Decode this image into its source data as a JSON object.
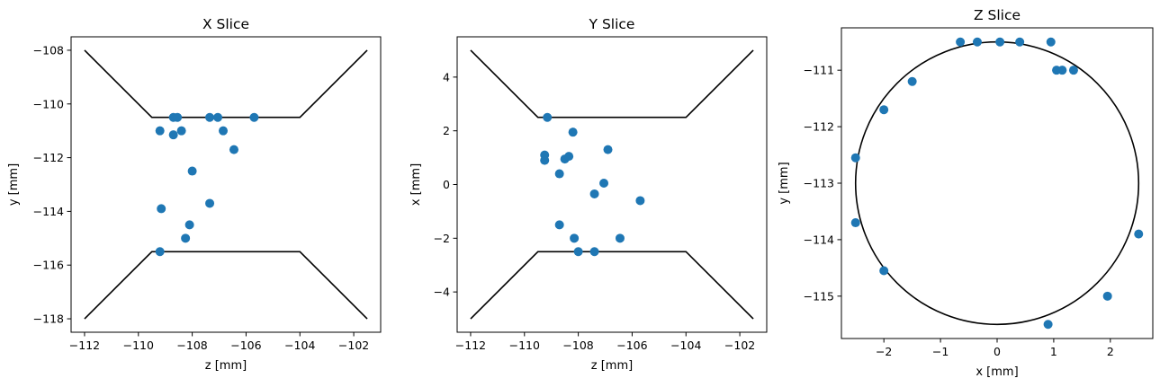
{
  "figure": {
    "marker_color": "#1f77b4",
    "line_color": "#000000"
  },
  "chart_data": [
    {
      "type": "scatter",
      "title": "X Slice",
      "xlabel": "z [mm]",
      "ylabel": "y [mm]",
      "xlim": [
        -112.5,
        -101
      ],
      "ylim": [
        -118.5,
        -107.5
      ],
      "xticks": [
        -112,
        -110,
        -108,
        -106,
        -104,
        -102
      ],
      "yticks": [
        -108,
        -110,
        -112,
        -114,
        -116,
        -118
      ],
      "xtick_labels": [
        "−112",
        "−110",
        "−108",
        "−106",
        "−104",
        "−102"
      ],
      "ytick_labels": [
        "−108",
        "−110",
        "−112",
        "−114",
        "−116",
        "−118"
      ],
      "boundary": [
        [
          [
            -112,
            -108
          ],
          [
            -109.5,
            -110.5
          ],
          [
            -104,
            -110.5
          ],
          [
            -101.5,
            -108
          ]
        ],
        [
          [
            -112,
            -118
          ],
          [
            -109.5,
            -115.5
          ],
          [
            -104,
            -115.5
          ],
          [
            -101.5,
            -118
          ]
        ]
      ],
      "points": [
        [
          -109.2,
          -111.0
        ],
        [
          -108.7,
          -111.15
        ],
        [
          -108.4,
          -111.0
        ],
        [
          -108.7,
          -110.5
        ],
        [
          -108.55,
          -110.5
        ],
        [
          -107.35,
          -110.5
        ],
        [
          -107.05,
          -110.5
        ],
        [
          -106.85,
          -111.0
        ],
        [
          -106.45,
          -111.7
        ],
        [
          -105.7,
          -110.5
        ],
        [
          -108.0,
          -112.5
        ],
        [
          -109.15,
          -113.9
        ],
        [
          -107.35,
          -113.7
        ],
        [
          -108.1,
          -114.5
        ],
        [
          -108.25,
          -115.0
        ],
        [
          -109.2,
          -115.5
        ]
      ]
    },
    {
      "type": "scatter",
      "title": "Y Slice",
      "xlabel": "z [mm]",
      "ylabel": "x [mm]",
      "xlim": [
        -112.5,
        -101
      ],
      "ylim": [
        -5.5,
        5.5
      ],
      "xticks": [
        -112,
        -110,
        -108,
        -106,
        -104,
        -102
      ],
      "yticks": [
        4,
        2,
        0,
        -2,
        -4
      ],
      "xtick_labels": [
        "−112",
        "−110",
        "−108",
        "−106",
        "−104",
        "−102"
      ],
      "ytick_labels": [
        "4",
        "2",
        "0",
        "−2",
        "−4"
      ],
      "boundary": [
        [
          [
            -112,
            5
          ],
          [
            -109.5,
            2.5
          ],
          [
            -104,
            2.5
          ],
          [
            -101.5,
            5
          ]
        ],
        [
          [
            -112,
            -5
          ],
          [
            -109.5,
            -2.5
          ],
          [
            -104,
            -2.5
          ],
          [
            -101.5,
            -5
          ]
        ]
      ],
      "points": [
        [
          -109.15,
          2.5
        ],
        [
          -108.2,
          1.95
        ],
        [
          -109.25,
          1.1
        ],
        [
          -109.25,
          0.9
        ],
        [
          -108.5,
          0.95
        ],
        [
          -108.35,
          1.05
        ],
        [
          -108.7,
          0.4
        ],
        [
          -106.9,
          1.3
        ],
        [
          -107.05,
          0.05
        ],
        [
          -107.4,
          -0.35
        ],
        [
          -105.7,
          -0.6
        ],
        [
          -108.7,
          -1.5
        ],
        [
          -108.15,
          -2.0
        ],
        [
          -106.45,
          -2.0
        ],
        [
          -108.0,
          -2.5
        ],
        [
          -107.4,
          -2.5
        ]
      ]
    },
    {
      "type": "scatter",
      "title": "Z Slice",
      "xlabel": "x [mm]",
      "ylabel": "y [mm]",
      "xlim": [
        -2.75,
        2.75
      ],
      "ylim": [
        -115.75,
        -110.25
      ],
      "xticks": [
        -2,
        -1,
        0,
        1,
        2
      ],
      "yticks": [
        -111,
        -112,
        -113,
        -114,
        -115
      ],
      "xtick_labels": [
        "−2",
        "−1",
        "0",
        "1",
        "2"
      ],
      "ytick_labels": [
        "−111",
        "−112",
        "−113",
        "−114",
        "−115"
      ],
      "circle": {
        "cx": 0,
        "cy": -113,
        "r": 2.5
      },
      "points": [
        [
          -0.65,
          -110.5
        ],
        [
          -0.35,
          -110.5
        ],
        [
          0.05,
          -110.5
        ],
        [
          0.4,
          -110.5
        ],
        [
          0.95,
          -110.5
        ],
        [
          1.05,
          -111.0
        ],
        [
          1.15,
          -111.0
        ],
        [
          1.35,
          -111.0
        ],
        [
          -1.5,
          -111.2
        ],
        [
          -2.0,
          -111.7
        ],
        [
          -2.5,
          -112.55
        ],
        [
          -2.5,
          -113.7
        ],
        [
          2.5,
          -113.9
        ],
        [
          -2.0,
          -114.55
        ],
        [
          1.95,
          -115.0
        ],
        [
          0.9,
          -115.5
        ]
      ]
    }
  ]
}
